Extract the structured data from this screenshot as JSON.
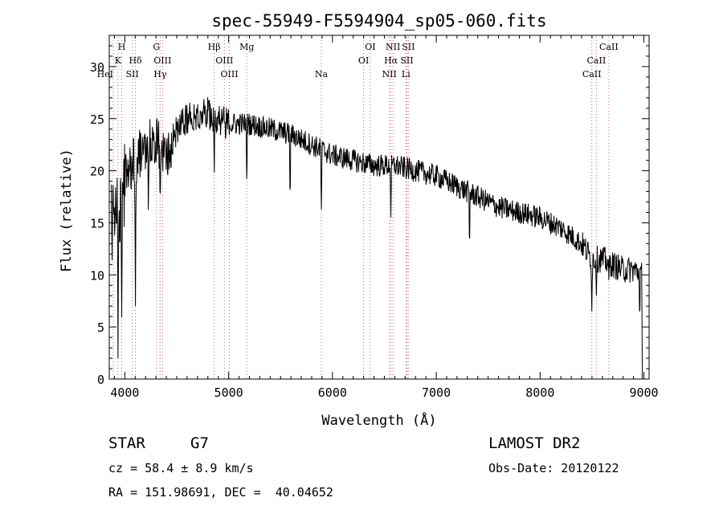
{
  "chart_data": {
    "type": "line",
    "title": "spec-55949-F5594904_sp05-060.fits",
    "xlabel": "Wavelength (Å)",
    "ylabel": "Flux (relative)",
    "xlim": [
      3850,
      9050
    ],
    "ylim": [
      0,
      33
    ],
    "x_ticks": [
      4000,
      5000,
      6000,
      7000,
      8000,
      9000
    ],
    "y_ticks": [
      0,
      5,
      10,
      15,
      20,
      25,
      30
    ],
    "grid": false,
    "line_colors": {
      "reference": "#d06060",
      "spectrum": "#000000"
    },
    "spectrum_anchor_points": {
      "x": [
        3870,
        3900,
        3950,
        4000,
        4100,
        4200,
        4300,
        4400,
        4500,
        4600,
        4700,
        4800,
        4900,
        5000,
        5200,
        5400,
        5600,
        5800,
        6000,
        6200,
        6400,
        6600,
        6800,
        7000,
        7200,
        7400,
        7600,
        7800,
        8000,
        8200,
        8400,
        8500,
        8600,
        8700,
        8800,
        8900,
        8990
      ],
      "y": [
        14,
        15,
        17,
        19,
        21,
        22.5,
        23,
        21.5,
        24,
        25,
        25.5,
        25.5,
        25,
        24.5,
        24.5,
        24,
        23.5,
        22.5,
        21.5,
        21,
        20.5,
        20.5,
        20,
        19.5,
        18.5,
        17.5,
        16.5,
        16,
        15.5,
        14.5,
        13,
        11.5,
        11.5,
        11,
        10.5,
        10.5,
        10
      ]
    },
    "spectrum_dips": [
      {
        "x": 3934,
        "y": 2
      },
      {
        "x": 3969,
        "y": 3
      },
      {
        "x": 4102,
        "y": 7
      },
      {
        "x": 4227,
        "y": 15
      },
      {
        "x": 4340,
        "y": 15
      },
      {
        "x": 4861,
        "y": 19
      },
      {
        "x": 5175,
        "y": 18
      },
      {
        "x": 5592,
        "y": 15.5
      },
      {
        "x": 5893,
        "y": 15
      },
      {
        "x": 6563,
        "y": 14.5
      },
      {
        "x": 7320,
        "y": 11.5
      },
      {
        "x": 8498,
        "y": 6.5
      },
      {
        "x": 8542,
        "y": 8
      },
      {
        "x": 8662,
        "y": 9.5
      },
      {
        "x": 8960,
        "y": 5
      },
      {
        "x": 8985,
        "y": 0
      }
    ],
    "reference_lines": [
      {
        "x": 3889,
        "label": "HeI",
        "row": 3,
        "align": "end"
      },
      {
        "x": 3934,
        "label": "K",
        "row": 2,
        "align": "middle"
      },
      {
        "x": 3970,
        "label": "H",
        "row": 1,
        "align": "middle"
      },
      {
        "x": 4072,
        "label": "SII",
        "row": 3,
        "align": "middle"
      },
      {
        "x": 4102,
        "label": "Hδ",
        "row": 2,
        "align": "middle"
      },
      {
        "x": 4305,
        "label": "G",
        "row": 1,
        "align": "middle"
      },
      {
        "x": 4340,
        "label": "Hγ",
        "row": 3,
        "align": "middle"
      },
      {
        "x": 4363,
        "label": "OIII",
        "row": 2,
        "align": "middle"
      },
      {
        "x": 4861,
        "label": "Hβ",
        "row": 1,
        "align": "middle"
      },
      {
        "x": 4959,
        "label": "OIII",
        "row": 2,
        "align": "middle"
      },
      {
        "x": 5007,
        "label": "OIII",
        "row": 3,
        "align": "middle"
      },
      {
        "x": 5175,
        "label": "Mg",
        "row": 1,
        "align": "middle"
      },
      {
        "x": 5893,
        "label": "Na",
        "row": 3,
        "align": "middle"
      },
      {
        "x": 6300,
        "label": "OI",
        "row": 2,
        "align": "middle"
      },
      {
        "x": 6364,
        "label": "OI",
        "row": 1,
        "align": "middle"
      },
      {
        "x": 6548,
        "label": "NII",
        "row": 3,
        "align": "middle"
      },
      {
        "x": 6563,
        "label": "Hα",
        "row": 2,
        "align": "middle"
      },
      {
        "x": 6583,
        "label": "NII",
        "row": 1,
        "align": "middle"
      },
      {
        "x": 6708,
        "label": "Li",
        "row": 3,
        "align": "middle"
      },
      {
        "x": 6717,
        "label": "SII",
        "row": 2,
        "align": "middle"
      },
      {
        "x": 6731,
        "label": "SII",
        "row": 1,
        "align": "middle"
      },
      {
        "x": 8498,
        "label": "CaII",
        "row": 3,
        "align": "middle"
      },
      {
        "x": 8542,
        "label": "CaII",
        "row": 2,
        "align": "middle"
      },
      {
        "x": 8662,
        "label": "CaII",
        "row": 1,
        "align": "middle"
      }
    ]
  },
  "info": {
    "object_class": "STAR",
    "subclass": "G7",
    "cz": "cz = 58.4 ± 8.9 km/s",
    "coords": "RA = 151.98691, DEC =  40.04652",
    "survey": "LAMOST DR2",
    "obs_date": "Obs-Date: 20120122"
  }
}
